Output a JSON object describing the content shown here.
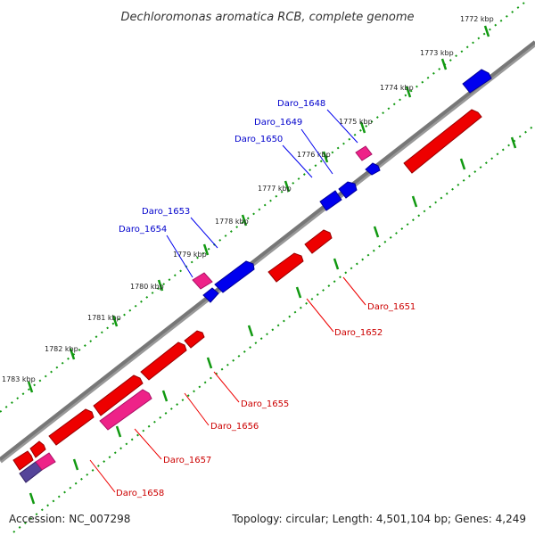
{
  "title": "Dechloromonas aromatica RCB, complete genome",
  "footer": {
    "accession": "Accession: NC_007298",
    "summary": "Topology: circular; Length: 4,501,104 bp; Genes: 4,249"
  },
  "ticks": [
    "1772 kbp",
    "1773 kbp",
    "1774 kbp",
    "1775 kbp",
    "1776 kbp",
    "1777 kbp",
    "1778 kbp",
    "1779 kbp",
    "1780 kbp",
    "1781 kbp",
    "1782 kbp",
    "1783 kbp"
  ],
  "genes_forward": [
    "Daro_1648",
    "Daro_1649",
    "Daro_1650",
    "Daro_1653",
    "Daro_1654"
  ],
  "genes_reverse": [
    "Daro_1651",
    "Daro_1652",
    "Daro_1655",
    "Daro_1656",
    "Daro_1657",
    "Daro_1658"
  ],
  "colors": {
    "forward": "#0000ee",
    "reverse": "#ee0000",
    "pseudo": "#ee2288",
    "overlap": "#554499",
    "axis": "#777777",
    "tick_marks": "#119911"
  }
}
